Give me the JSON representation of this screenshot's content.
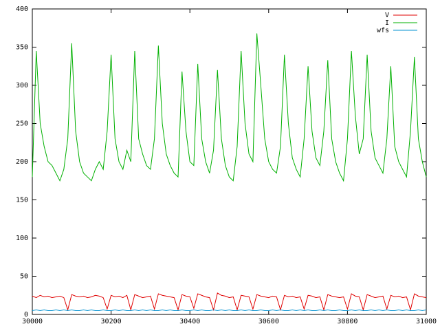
{
  "chart_data": {
    "type": "line",
    "x": [
      30000,
      30010,
      30020,
      30030,
      30040,
      30050,
      30060,
      30070,
      30080,
      30090,
      30100,
      30110,
      30120,
      30130,
      30140,
      30150,
      30160,
      30170,
      30180,
      30190,
      30200,
      30210,
      30220,
      30230,
      30240,
      30250,
      30260,
      30270,
      30280,
      30290,
      30300,
      30310,
      30320,
      30330,
      30340,
      30350,
      30360,
      30370,
      30380,
      30390,
      30400,
      30410,
      30420,
      30430,
      30440,
      30450,
      30460,
      30470,
      30480,
      30490,
      30500,
      30510,
      30520,
      30530,
      30540,
      30550,
      30560,
      30570,
      30580,
      30590,
      30600,
      30610,
      30620,
      30630,
      30640,
      30650,
      30660,
      30670,
      30680,
      30690,
      30700,
      30710,
      30720,
      30730,
      30740,
      30750,
      30760,
      30770,
      30780,
      30790,
      30800,
      30810,
      30820,
      30830,
      30840,
      30850,
      30860,
      30870,
      30880,
      30890,
      30900,
      30910,
      30920,
      30930,
      30940,
      30950,
      30960,
      30970,
      30980,
      30990,
      31000
    ],
    "series": [
      {
        "name": "V",
        "color": "#e00000",
        "values": [
          24,
          22,
          25,
          23,
          24,
          22,
          23,
          24,
          22,
          6,
          26,
          24,
          23,
          24,
          22,
          23,
          25,
          24,
          22,
          7,
          25,
          23,
          24,
          22,
          25,
          6,
          26,
          24,
          22,
          23,
          24,
          7,
          27,
          25,
          24,
          23,
          22,
          6,
          26,
          24,
          23,
          8,
          27,
          25,
          23,
          22,
          6,
          28,
          25,
          24,
          22,
          23,
          6,
          25,
          24,
          23,
          7,
          26,
          24,
          23,
          22,
          24,
          23,
          6,
          25,
          23,
          24,
          22,
          23,
          7,
          25,
          24,
          22,
          23,
          6,
          26,
          24,
          23,
          22,
          23,
          7,
          27,
          24,
          23,
          6,
          26,
          24,
          22,
          23,
          24,
          7,
          25,
          23,
          24,
          22,
          23,
          6,
          27,
          24,
          23,
          22
        ]
      },
      {
        "name": "I",
        "color": "#00b000",
        "values": [
          180,
          345,
          250,
          220,
          200,
          195,
          185,
          175,
          190,
          230,
          355,
          240,
          200,
          185,
          180,
          175,
          190,
          200,
          190,
          240,
          340,
          230,
          200,
          190,
          215,
          200,
          345,
          230,
          210,
          195,
          190,
          230,
          352,
          250,
          210,
          195,
          185,
          180,
          318,
          240,
          200,
          195,
          328,
          230,
          200,
          185,
          215,
          320,
          230,
          195,
          180,
          175,
          220,
          345,
          250,
          210,
          200,
          368,
          300,
          230,
          200,
          190,
          185,
          220,
          340,
          250,
          205,
          190,
          180,
          230,
          325,
          240,
          205,
          195,
          240,
          333,
          230,
          200,
          185,
          175,
          230,
          345,
          260,
          210,
          230,
          340,
          240,
          205,
          195,
          185,
          230,
          325,
          220,
          200,
          190,
          180,
          240,
          337,
          230,
          200,
          180
        ]
      },
      {
        "name": "wfs",
        "color": "#0090d0",
        "values": [
          5,
          6,
          5,
          6,
          5,
          5,
          6,
          5,
          6,
          5,
          6,
          5,
          5,
          6,
          5,
          6,
          5,
          5,
          6,
          5,
          5,
          6,
          5,
          6,
          5,
          5,
          6,
          5,
          6,
          5,
          6,
          5,
          5,
          6,
          5,
          6,
          5,
          5,
          6,
          5,
          5,
          6,
          5,
          6,
          5,
          5,
          6,
          5,
          6,
          5,
          6,
          5,
          5,
          6,
          5,
          6,
          5,
          5,
          6,
          5,
          5,
          6,
          5,
          6,
          5,
          5,
          6,
          5,
          6,
          5,
          6,
          5,
          5,
          6,
          5,
          6,
          5,
          5,
          6,
          5,
          5,
          6,
          5,
          6,
          5,
          5,
          6,
          5,
          6,
          5,
          6,
          5,
          5,
          6,
          5,
          6,
          5,
          5,
          6,
          5,
          6
        ]
      }
    ],
    "xlim": [
      30000,
      31000
    ],
    "xticks": [
      30000,
      30200,
      30400,
      30600,
      30800,
      31000
    ],
    "ylim": [
      0,
      400
    ],
    "yticks": [
      0,
      50,
      100,
      150,
      200,
      250,
      300,
      350,
      400
    ],
    "legend": "upper right"
  }
}
